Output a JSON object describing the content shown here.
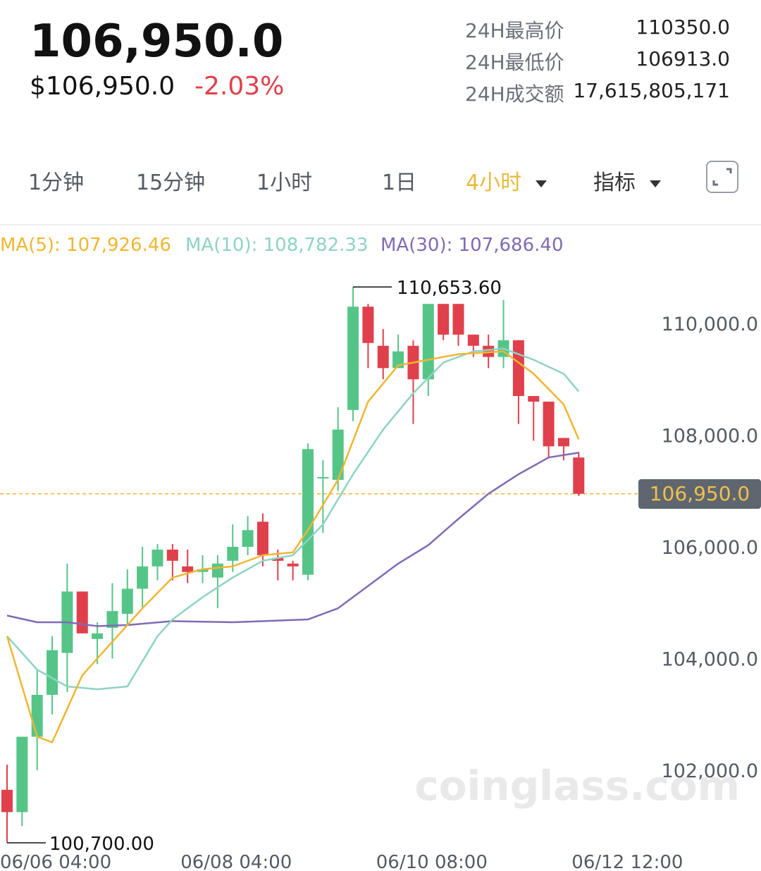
{
  "header": {
    "price": "106,950.0",
    "price_usd": "$106,950.0",
    "change_pct": "-2.03%"
  },
  "stats": [
    {
      "label": "24H最高价",
      "value": "110350.0"
    },
    {
      "label": "24H最低价",
      "value": "106913.0"
    },
    {
      "label": "24H成交额",
      "value": "17,615,805,171"
    }
  ],
  "tabs": [
    {
      "label": "1分钟"
    },
    {
      "label": "15分钟"
    },
    {
      "label": "1小时"
    },
    {
      "label": "1日"
    },
    {
      "label": "4小时",
      "active": true
    },
    {
      "label": "指标"
    }
  ],
  "ma_legend": [
    {
      "label": "MA(5): 107,926.46",
      "color": "#efb630"
    },
    {
      "label": "MA(10): 108,782.33",
      "color": "#8dd3c4"
    },
    {
      "label": "MA(30): 107,686.40",
      "color": "#7f6bb5"
    }
  ],
  "icons": {
    "expand": "expand-icon",
    "dropdown": "chevron-down-icon"
  },
  "colors": {
    "up": "#55c587",
    "down": "#e0404b",
    "accent": "#e8b93a"
  },
  "chart_data": {
    "type": "candlestick",
    "y_ticks": [
      "110,000.0",
      "108,000.0",
      "106,000.0",
      "104,000.0",
      "102,000.0"
    ],
    "y_tick_values": [
      110000,
      108000,
      106000,
      104000,
      102000
    ],
    "x_ticks": [
      "06/06 04:00",
      "06/08 04:00",
      "06/10 08:00",
      "06/12 12:00"
    ],
    "x_tick_index": [
      0,
      12,
      25,
      38
    ],
    "high_label": "110,653.60",
    "low_label": "100,700.00",
    "last_price_label": "106,950.0",
    "last_price": 106950,
    "watermark": "coinglass.com",
    "candles": [
      [
        101650,
        101250,
        102100,
        100700
      ],
      [
        101250,
        102600,
        102600,
        101000
      ],
      [
        102600,
        103350,
        103800,
        102000
      ],
      [
        103350,
        104150,
        104400,
        103000
      ],
      [
        104100,
        105200,
        105700,
        103400
      ],
      [
        105200,
        104450,
        105200,
        104450
      ],
      [
        104350,
        104450,
        104650,
        103900
      ],
      [
        104550,
        104850,
        105350,
        104000
      ],
      [
        104800,
        105250,
        105600,
        104600
      ],
      [
        105250,
        105650,
        106000,
        104900
      ],
      [
        105650,
        105950,
        106050,
        105400
      ],
      [
        105950,
        105750,
        106050,
        105400
      ],
      [
        105650,
        105550,
        105950,
        105350
      ],
      [
        105550,
        105600,
        105850,
        105350
      ],
      [
        105450,
        105700,
        105850,
        104900
      ],
      [
        105750,
        106000,
        106400,
        105550
      ],
      [
        106000,
        106300,
        106550,
        105850
      ],
      [
        106450,
        105850,
        106600,
        105650
      ],
      [
        105800,
        105750,
        105950,
        105400
      ],
      [
        105700,
        105650,
        105750,
        105400
      ],
      [
        105500,
        107750,
        107850,
        105400
      ],
      [
        107250,
        107250,
        107550,
        106250
      ],
      [
        107200,
        108100,
        108500,
        107000
      ],
      [
        108450,
        110300,
        110653.6,
        108250
      ],
      [
        110300,
        109650,
        110350,
        109200
      ],
      [
        109600,
        109200,
        109900,
        109000
      ],
      [
        109200,
        109500,
        109800,
        109200
      ],
      [
        109600,
        109000,
        109700,
        108200
      ],
      [
        109000,
        110350,
        110350,
        108700
      ],
      [
        110350,
        109800,
        110350,
        109700
      ],
      [
        110350,
        109800,
        110350,
        109600
      ],
      [
        109800,
        109600,
        109800,
        109400
      ],
      [
        109600,
        109400,
        109800,
        109200
      ],
      [
        109400,
        109700,
        110420,
        109200
      ],
      [
        109700,
        108700,
        109700,
        108200
      ],
      [
        108700,
        108600,
        108700,
        107900
      ],
      [
        108600,
        107800,
        108600,
        107600
      ],
      [
        107950,
        107800,
        107900,
        107550
      ],
      [
        107600,
        106950,
        107700,
        106913
      ]
    ],
    "ma5": [
      [
        0,
        104400
      ],
      [
        2,
        102600
      ],
      [
        3,
        102500
      ],
      [
        5,
        103700
      ],
      [
        7,
        104300
      ],
      [
        9,
        104900
      ],
      [
        11,
        105450
      ],
      [
        13,
        105600
      ],
      [
        15,
        105650
      ],
      [
        17,
        105850
      ],
      [
        19,
        105900
      ],
      [
        20,
        106300
      ],
      [
        22,
        107200
      ],
      [
        24,
        108600
      ],
      [
        26,
        109250
      ],
      [
        28,
        109350
      ],
      [
        30,
        109450
      ],
      [
        33,
        109500
      ],
      [
        35,
        109100
      ],
      [
        37,
        108550
      ],
      [
        38,
        107926.46
      ]
    ],
    "ma10": [
      [
        0,
        104400
      ],
      [
        2,
        103800
      ],
      [
        4,
        103500
      ],
      [
        6,
        103450
      ],
      [
        8,
        103500
      ],
      [
        10,
        104400
      ],
      [
        11,
        104700
      ],
      [
        13,
        105100
      ],
      [
        15,
        105450
      ],
      [
        17,
        105750
      ],
      [
        19,
        105850
      ],
      [
        21,
        106400
      ],
      [
        23,
        107300
      ],
      [
        25,
        108100
      ],
      [
        27,
        108750
      ],
      [
        29,
        109300
      ],
      [
        31,
        109500
      ],
      [
        33,
        109550
      ],
      [
        35,
        109350
      ],
      [
        37,
        109100
      ],
      [
        38,
        108782.33
      ]
    ],
    "ma30": [
      [
        0,
        104770
      ],
      [
        2,
        104650
      ],
      [
        4,
        104650
      ],
      [
        6,
        104580
      ],
      [
        8,
        104600
      ],
      [
        11,
        104670
      ],
      [
        15,
        104650
      ],
      [
        20,
        104700
      ],
      [
        22,
        104900
      ],
      [
        24,
        105300
      ],
      [
        26,
        105700
      ],
      [
        28,
        106030
      ],
      [
        30,
        106500
      ],
      [
        32,
        106950
      ],
      [
        34,
        107300
      ],
      [
        36,
        107600
      ],
      [
        38,
        107686.4
      ]
    ]
  }
}
